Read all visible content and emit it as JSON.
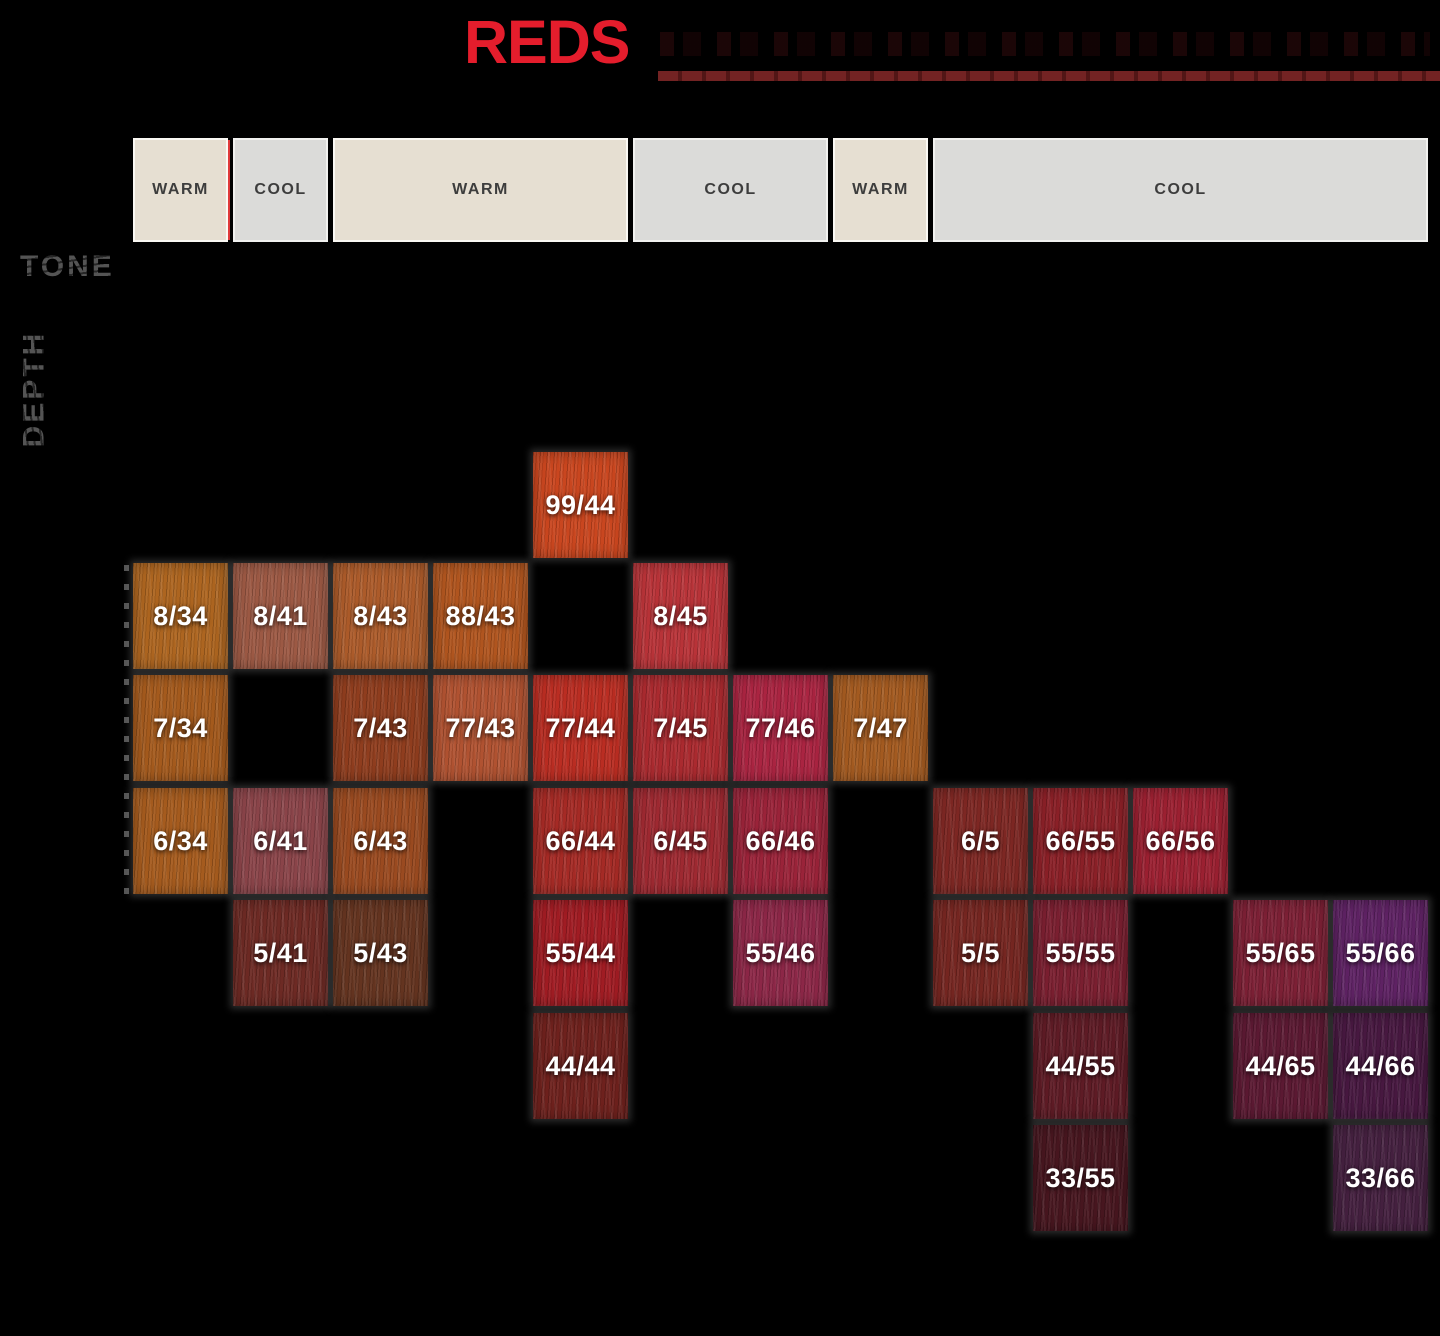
{
  "page": {
    "background": "#000000"
  },
  "title": {
    "text": "REDS",
    "color": "#e41d2c",
    "underline_color": "#6e2121"
  },
  "axes": {
    "tone_label": "TONE",
    "depth_label": "DEPTH"
  },
  "header": {
    "divider_color": "#e03a3a",
    "segments": [
      {
        "label": "WARM",
        "tone": "warm",
        "col": 0,
        "span": 1
      },
      {
        "label": "COOL",
        "tone": "cool",
        "col": 1,
        "span": 1
      },
      {
        "label": "WARM",
        "tone": "warm",
        "col": 2,
        "span": 3
      },
      {
        "label": "COOL",
        "tone": "cool",
        "col": 5,
        "span": 2
      },
      {
        "label": "WARM",
        "tone": "warm",
        "col": 7,
        "span": 1
      },
      {
        "label": "COOL",
        "tone": "cool",
        "col": 8,
        "span": 5
      }
    ]
  },
  "chart_data": {
    "type": "heatmap",
    "title": "REDS",
    "xlabel": "TONE",
    "ylabel": "DEPTH",
    "row_depths": [
      9,
      8,
      7,
      6,
      5,
      4,
      3
    ],
    "col_tones": [
      "warm",
      "cool",
      "warm",
      "warm",
      "warm",
      "cool",
      "cool",
      "warm",
      "cool",
      "cool",
      "cool",
      "cool",
      "cool"
    ],
    "cells": [
      {
        "code": "99/44",
        "row": 0,
        "col": 4,
        "color": "#c9461f"
      },
      {
        "code": "8/34",
        "row": 1,
        "col": 0,
        "color": "#ad6520"
      },
      {
        "code": "8/41",
        "row": 1,
        "col": 1,
        "color": "#9c5944"
      },
      {
        "code": "8/43",
        "row": 1,
        "col": 2,
        "color": "#ac5b2a"
      },
      {
        "code": "88/43",
        "row": 1,
        "col": 3,
        "color": "#b0551f"
      },
      {
        "code": "8/45",
        "row": 1,
        "col": 5,
        "color": "#b83338"
      },
      {
        "code": "7/34",
        "row": 2,
        "col": 0,
        "color": "#a45a1d"
      },
      {
        "code": "7/43",
        "row": 2,
        "col": 2,
        "color": "#8f3d1e"
      },
      {
        "code": "77/43",
        "row": 2,
        "col": 3,
        "color": "#b05231"
      },
      {
        "code": "77/44",
        "row": 2,
        "col": 4,
        "color": "#ba2d22"
      },
      {
        "code": "7/45",
        "row": 2,
        "col": 5,
        "color": "#aa2a2f"
      },
      {
        "code": "77/46",
        "row": 2,
        "col": 6,
        "color": "#aa2441"
      },
      {
        "code": "7/47",
        "row": 2,
        "col": 7,
        "color": "#a35a20"
      },
      {
        "code": "6/34",
        "row": 3,
        "col": 0,
        "color": "#a55b1e"
      },
      {
        "code": "6/41",
        "row": 3,
        "col": 1,
        "color": "#8a4449"
      },
      {
        "code": "6/43",
        "row": 3,
        "col": 2,
        "color": "#9a4a20"
      },
      {
        "code": "66/44",
        "row": 3,
        "col": 4,
        "color": "#a52a25"
      },
      {
        "code": "6/45",
        "row": 3,
        "col": 5,
        "color": "#9e2931"
      },
      {
        "code": "66/46",
        "row": 3,
        "col": 6,
        "color": "#9a2339"
      },
      {
        "code": "6/5",
        "row": 3,
        "col": 8,
        "color": "#7d2723"
      },
      {
        "code": "66/55",
        "row": 3,
        "col": 9,
        "color": "#8a2027"
      },
      {
        "code": "66/56",
        "row": 3,
        "col": 10,
        "color": "#9b2031"
      },
      {
        "code": "5/41",
        "row": 4,
        "col": 1,
        "color": "#6d2a24"
      },
      {
        "code": "5/43",
        "row": 4,
        "col": 2,
        "color": "#643420"
      },
      {
        "code": "55/44",
        "row": 4,
        "col": 4,
        "color": "#a01c23"
      },
      {
        "code": "55/46",
        "row": 4,
        "col": 6,
        "color": "#8c2747"
      },
      {
        "code": "5/5",
        "row": 4,
        "col": 8,
        "color": "#752621"
      },
      {
        "code": "55/55",
        "row": 4,
        "col": 9,
        "color": "#7a1f30"
      },
      {
        "code": "55/65",
        "row": 4,
        "col": 11,
        "color": "#7c2035"
      },
      {
        "code": "55/66",
        "row": 4,
        "col": 12,
        "color": "#5e2263"
      },
      {
        "code": "44/44",
        "row": 5,
        "col": 4,
        "color": "#6e211d"
      },
      {
        "code": "44/55",
        "row": 5,
        "col": 9,
        "color": "#5e1b25"
      },
      {
        "code": "44/65",
        "row": 5,
        "col": 11,
        "color": "#5b1932"
      },
      {
        "code": "44/66",
        "row": 5,
        "col": 12,
        "color": "#471840"
      },
      {
        "code": "33/55",
        "row": 6,
        "col": 9,
        "color": "#47161f"
      },
      {
        "code": "33/66",
        "row": 6,
        "col": 12,
        "color": "#44203f"
      }
    ]
  }
}
